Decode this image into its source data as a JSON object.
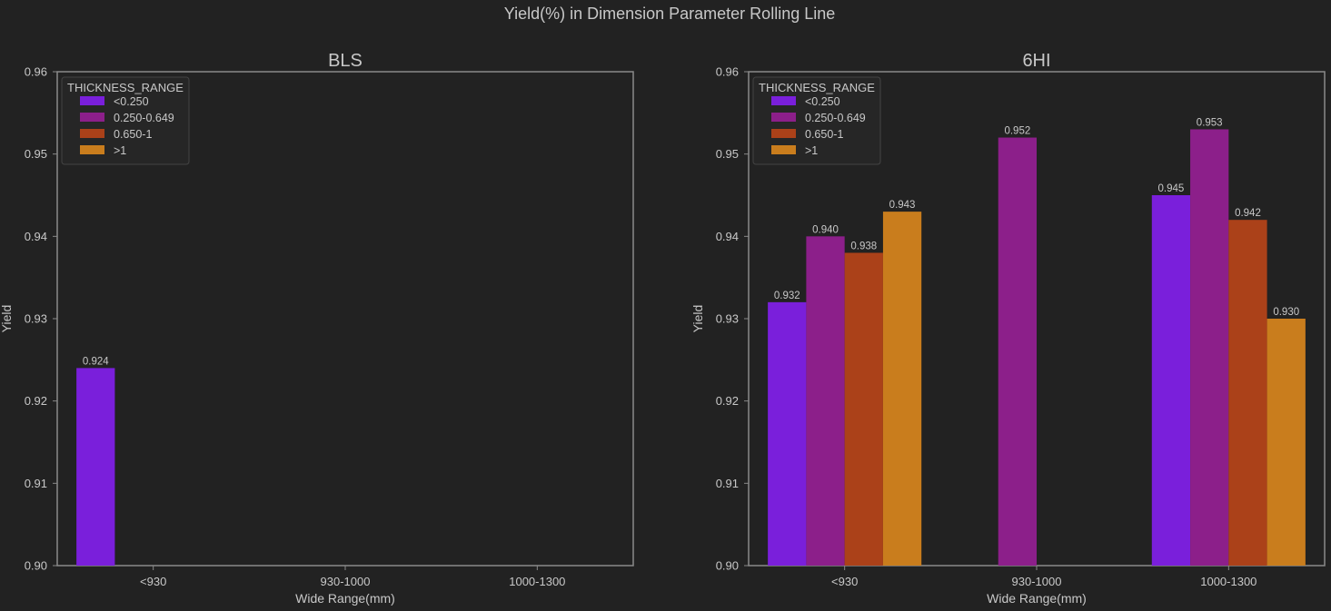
{
  "suptitle": "Yield(%) in Dimension Parameter Rolling Line",
  "colors": {
    "background": "#222222",
    "axes_edge": "#8a8a8a",
    "text": "#c8c8c8",
    "series": [
      "#7a1fdb",
      "#8c1f8a",
      "#ab4119",
      "#c97d1d"
    ]
  },
  "chart_data": [
    {
      "type": "bar",
      "title": "BLS",
      "xlabel": "Wide Range(mm)",
      "ylabel": "Yield",
      "ylim": [
        0.9,
        0.96
      ],
      "yticks": [
        "0.90",
        "0.91",
        "0.92",
        "0.93",
        "0.94",
        "0.95",
        "0.96"
      ],
      "grid": false,
      "legend_title": "THICKNESS_RANGE",
      "legend_position": "top-left",
      "categories": [
        "<930",
        "930-1000",
        "1000-1300"
      ],
      "series": [
        {
          "name": "<0.250",
          "values": [
            0.924,
            null,
            null
          ],
          "labels": [
            "0.924",
            null,
            null
          ]
        },
        {
          "name": "0.250-0.649",
          "values": [
            null,
            null,
            null
          ],
          "labels": [
            null,
            null,
            null
          ]
        },
        {
          "name": "0.650-1",
          "values": [
            null,
            null,
            null
          ],
          "labels": [
            null,
            null,
            null
          ]
        },
        {
          "name": ">1",
          "values": [
            null,
            null,
            null
          ],
          "labels": [
            null,
            null,
            null
          ]
        }
      ]
    },
    {
      "type": "bar",
      "title": "6HI",
      "xlabel": "Wide Range(mm)",
      "ylabel": "Yield",
      "ylim": [
        0.9,
        0.96
      ],
      "yticks": [
        "0.90",
        "0.91",
        "0.92",
        "0.93",
        "0.94",
        "0.95",
        "0.96"
      ],
      "grid": false,
      "legend_title": "THICKNESS_RANGE",
      "legend_position": "top-left",
      "categories": [
        "<930",
        "930-1000",
        "1000-1300"
      ],
      "series": [
        {
          "name": "<0.250",
          "values": [
            0.932,
            null,
            0.945
          ],
          "labels": [
            "0.932",
            null,
            "0.945"
          ]
        },
        {
          "name": "0.250-0.649",
          "values": [
            0.94,
            0.952,
            0.953
          ],
          "labels": [
            "0.940",
            "0.952",
            "0.953"
          ]
        },
        {
          "name": "0.650-1",
          "values": [
            0.938,
            null,
            0.942
          ],
          "labels": [
            "0.938",
            null,
            "0.942"
          ]
        },
        {
          "name": ">1",
          "values": [
            0.943,
            null,
            0.93
          ],
          "labels": [
            "0.943",
            null,
            "0.930"
          ]
        }
      ]
    }
  ]
}
